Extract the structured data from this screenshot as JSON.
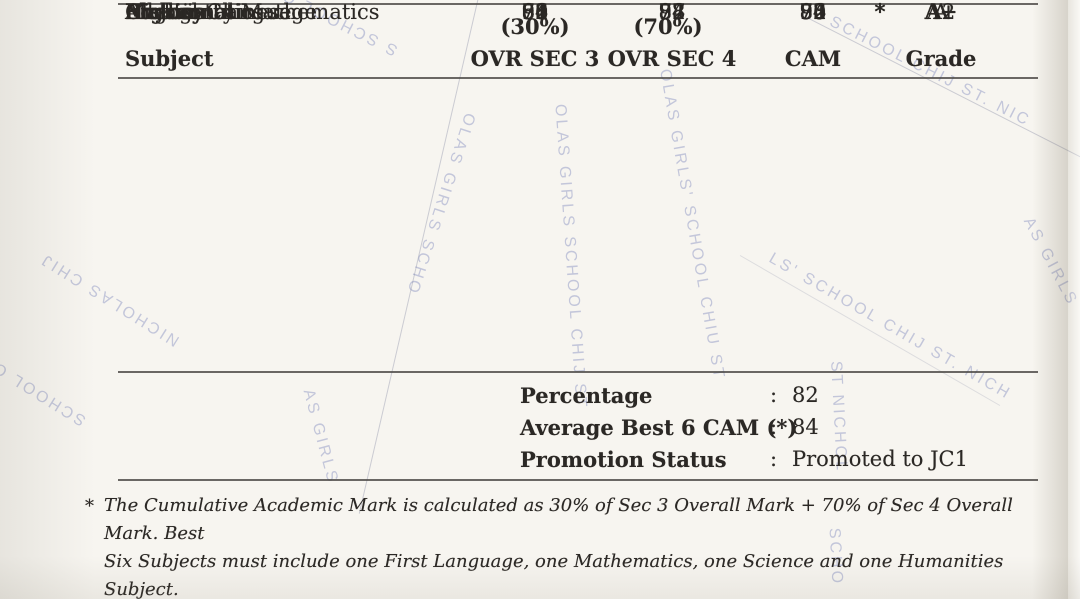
{
  "document": {
    "colors": {
      "paper": "#f7f5f0",
      "ink": "#2b2825",
      "rule": "#4b4844",
      "watermark": "#949cc6"
    },
    "table": {
      "headers": {
        "subject": "Subject",
        "col1_top": "(30%)",
        "col1_bottom": "OVR SEC 3",
        "col2_top": "(70%)",
        "col2_bottom": "OVR SEC 4",
        "cam": "CAM",
        "grade": "Grade"
      },
      "rows": [
        {
          "subject": "English Language",
          "ovr_sec3": "68",
          "ovr_sec4": "73",
          "cam": "72",
          "best6": "",
          "grade": "A"
        },
        {
          "subject": "Higher Chinese",
          "ovr_sec3": "71",
          "ovr_sec4": "74",
          "cam": "73",
          "best6": "*",
          "grade": "A2"
        },
        {
          "subject": "Additional Mathematics",
          "ovr_sec3": "92",
          "ovr_sec4": "92",
          "cam": "92",
          "best6": "*",
          "grade": "A+"
        },
        {
          "subject": "Mathematics",
          "ovr_sec3": "93",
          "ovr_sec4": "88",
          "cam": "90",
          "best6": "*",
          "grade": "A+"
        },
        {
          "subject": "Biology",
          "ovr_sec3": "80",
          "ovr_sec4": "88",
          "cam": "86",
          "best6": "*",
          "grade": "A+"
        },
        {
          "subject": "Chemistry",
          "ovr_sec3": "80",
          "ovr_sec4": "87",
          "cam": "85",
          "best6": "*",
          "grade": "A+"
        },
        {
          "subject": "Physics",
          "ovr_sec3": "74",
          "ovr_sec4": "87",
          "cam": "84",
          "best6": "",
          "grade": "A+"
        },
        {
          "subject": "History",
          "ovr_sec3": "66",
          "ovr_sec4": "77",
          "cam": "74",
          "best6": "*",
          "grade": "A"
        }
      ]
    },
    "summary": [
      {
        "label": "Percentage",
        "separator": ":",
        "value": "82"
      },
      {
        "label": "Average Best 6 CAM (*)",
        "separator": ":",
        "value": "84"
      },
      {
        "label": "Promotion Status",
        "separator": ":",
        "value": "Promoted to JC1"
      }
    ],
    "footnote": {
      "marker": "*",
      "line1": "The Cumulative Academic Mark is calculated as 30% of Sec 3 Overall Mark + 70% of Sec 4 Overall Mark. Best",
      "line2": "Six Subjects must include one First Language, one Mathematics, one Science and one Humanities Subject."
    },
    "watermark": {
      "fragments": [
        "S School Chij",
        "Nicholas Chij",
        "Olas Girls Scho",
        "Olas Girls School Chij St",
        "Olas Girls' School Chiu St",
        "School Chij St. Nic",
        "Ls' School Chij St. Nich",
        "As Girls",
        "As Girls",
        "School Chi",
        "Scho",
        "St Nichol"
      ]
    }
  }
}
